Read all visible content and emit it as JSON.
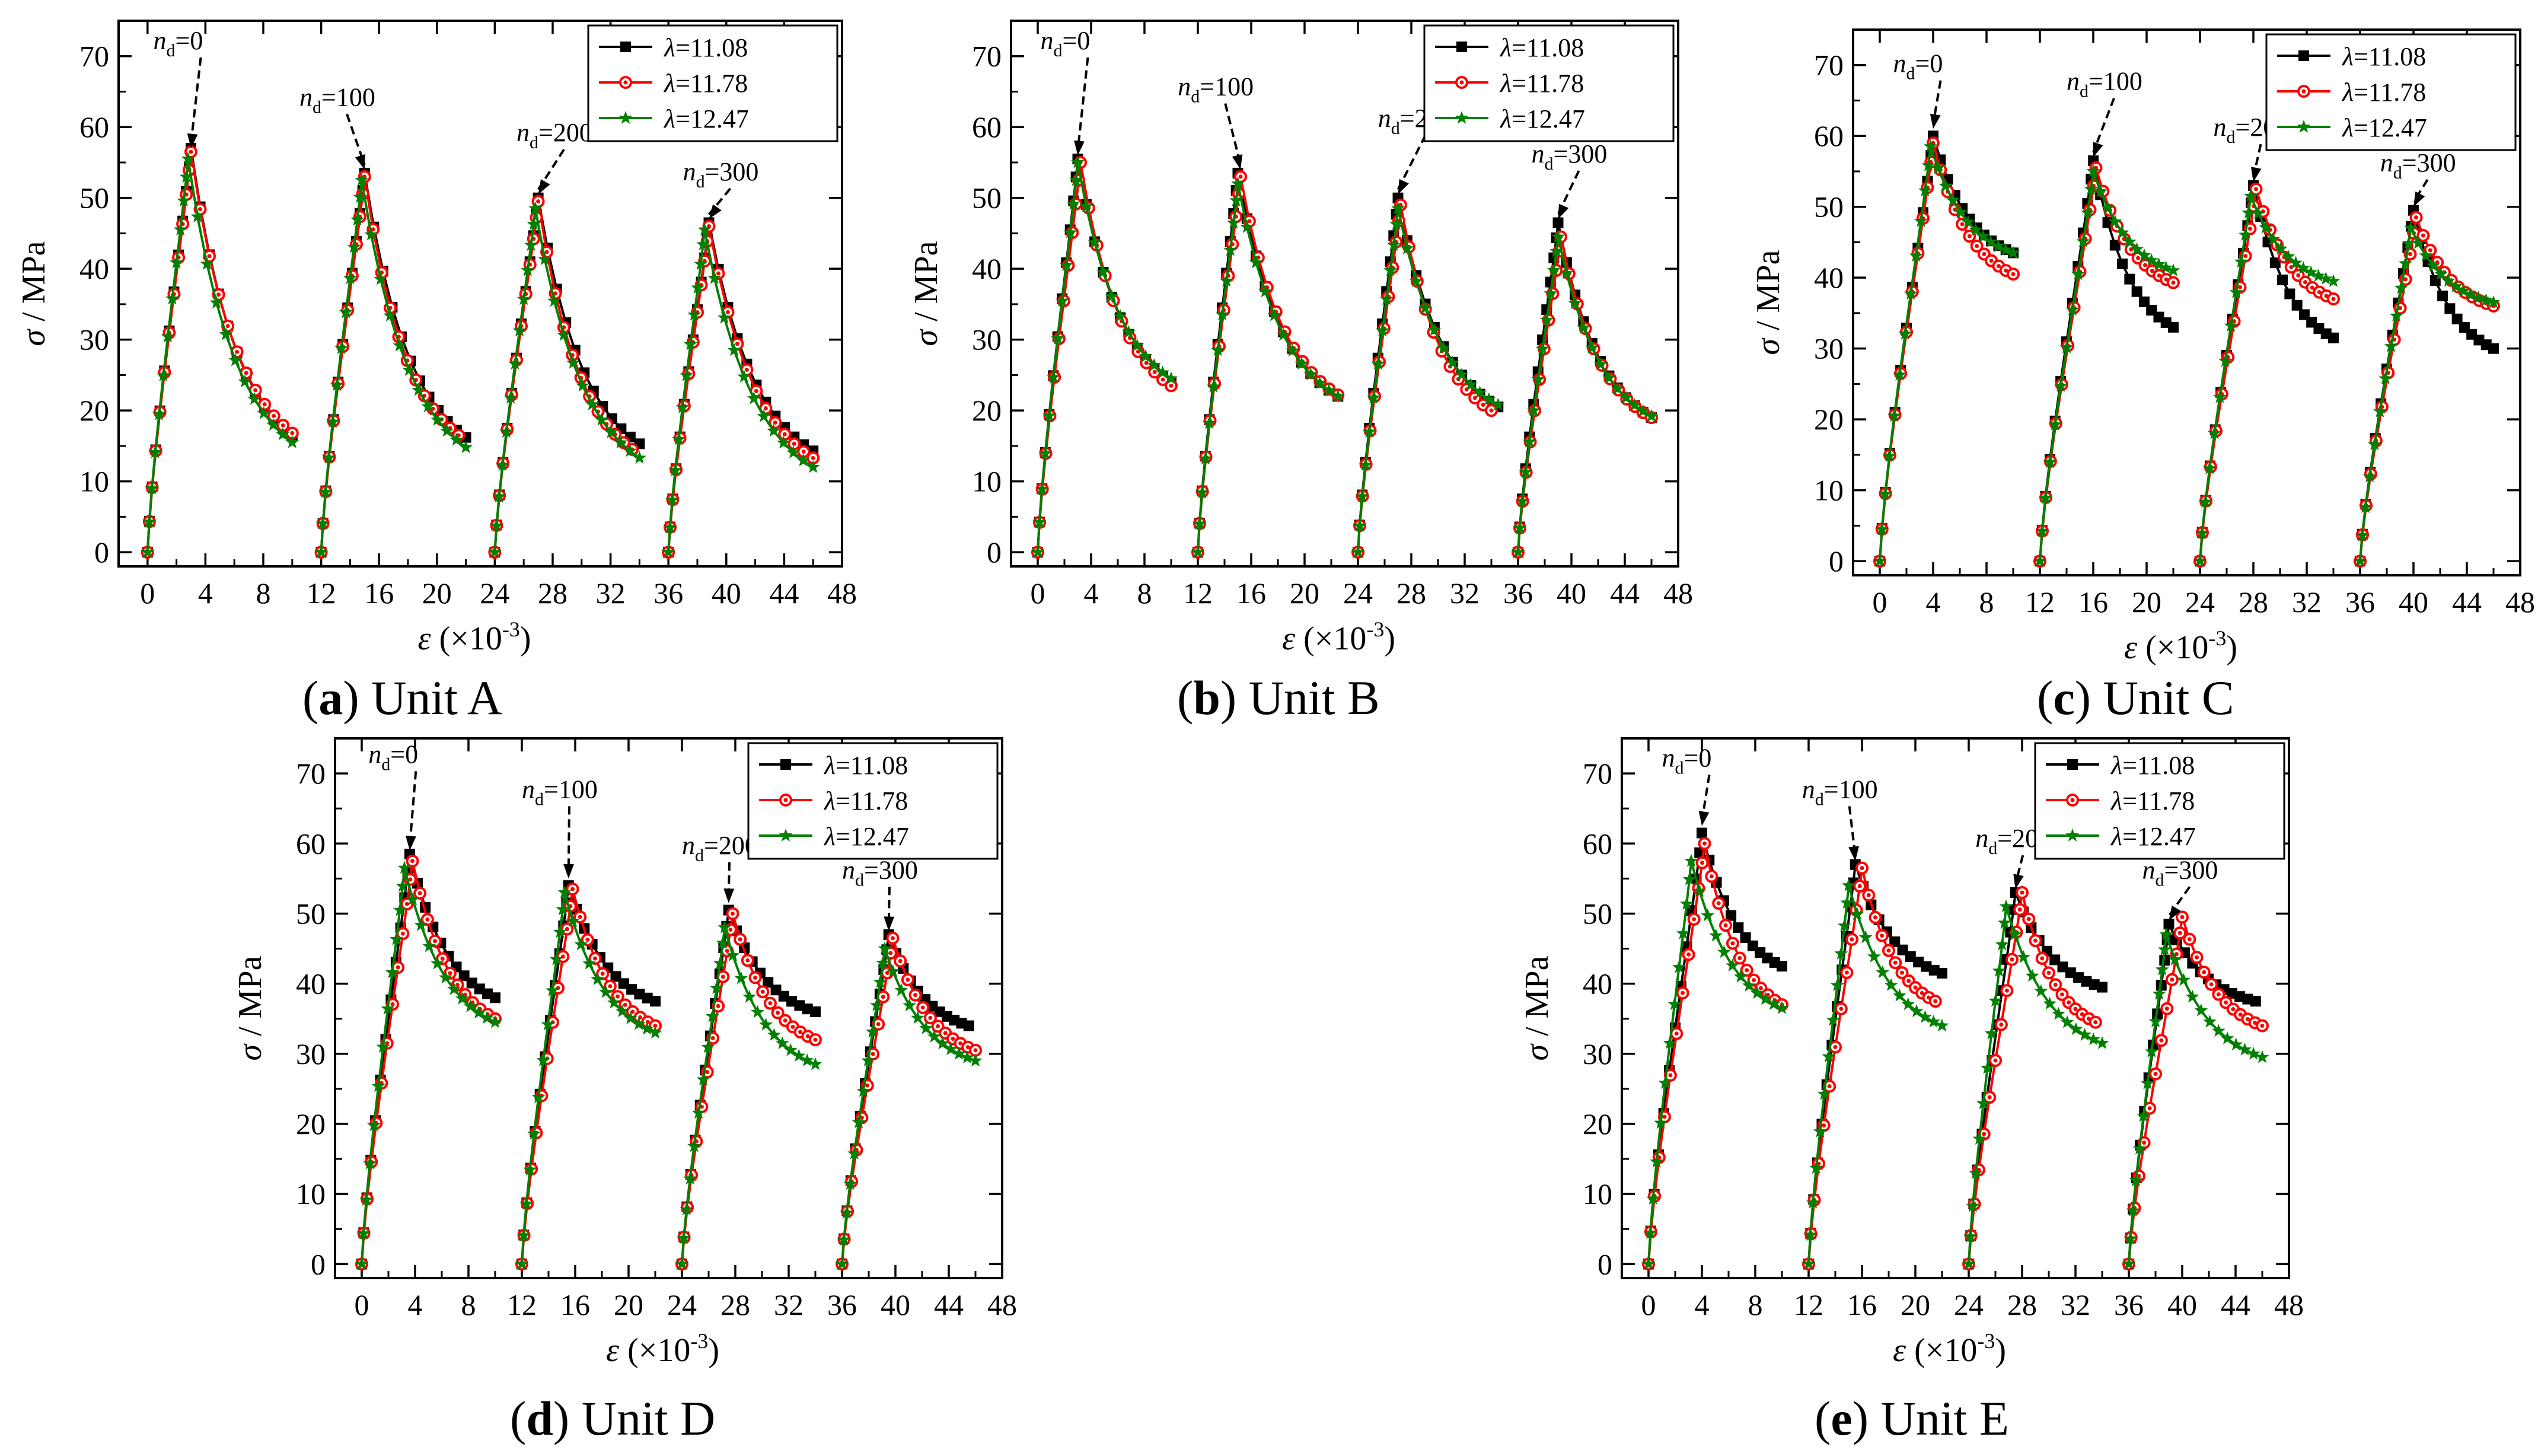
{
  "figure": {
    "legend_labels": [
      "λ=11.08",
      "λ=11.78",
      "λ=12.47"
    ],
    "series_colors": [
      "#000000",
      "#ff0000",
      "#008000"
    ],
    "series_markers": [
      "square",
      "circle",
      "star"
    ],
    "annotation_prefix": "n",
    "annotation_subscript": "d",
    "ylabel_symbol": "σ",
    "ylabel_unit": " / MPa",
    "xlabel_symbol": "ε",
    "xlabel_unit": " (×10",
    "xlabel_exp": "-3",
    "xlabel_close": ")"
  },
  "captions": [
    {
      "letter": "a",
      "text": "Unit A"
    },
    {
      "letter": "b",
      "text": "Unit B"
    },
    {
      "letter": "c",
      "text": "Unit C"
    },
    {
      "letter": "d",
      "text": "Unit D"
    },
    {
      "letter": "e",
      "text": "Unit E"
    }
  ],
  "chart_data": [
    {
      "id": "a",
      "type": "line",
      "title": "Unit A",
      "xlabel": "ε (×10-3)",
      "ylabel": "σ / MPa",
      "xlim": [
        -2,
        48
      ],
      "ylim": [
        -2,
        75
      ],
      "xticks": [
        0,
        4,
        8,
        12,
        16,
        20,
        24,
        28,
        32,
        36,
        40,
        44,
        48
      ],
      "yticks": [
        0,
        10,
        20,
        30,
        40,
        50,
        60,
        70
      ],
      "legend_position": "top-right",
      "annotations": [
        {
          "text": "nd=0",
          "label_x": 0.4,
          "label_y": 71,
          "arrow_to": [
            3.0,
            57
          ]
        },
        {
          "text": "nd=100",
          "label_x": 10.5,
          "label_y": 63,
          "arrow_to": [
            15.0,
            54
          ]
        },
        {
          "text": "nd=200",
          "label_x": 25.5,
          "label_y": 58,
          "arrow_to": [
            27.0,
            50.5
          ]
        },
        {
          "text": "nd=300",
          "label_x": 37.0,
          "label_y": 52.5,
          "arrow_to": [
            38.8,
            47
          ]
        }
      ],
      "series": [
        {
          "name": "λ=11.08",
          "peaks": [
            [
              3.0,
              57
            ],
            [
              15.0,
              53.5
            ],
            [
              27.0,
              50
            ],
            [
              38.8,
              46.5
            ]
          ],
          "ends": [
            [
              10.0,
              16.5
            ],
            [
              22.0,
              16.2
            ],
            [
              34.0,
              15.3
            ],
            [
              46.0,
              14.3
            ]
          ]
        },
        {
          "name": "λ=11.78",
          "peaks": [
            [
              3.0,
              56.5
            ],
            [
              15.0,
              53
            ],
            [
              27.0,
              49.5
            ],
            [
              38.8,
              46
            ]
          ],
          "ends": [
            [
              10.0,
              16.8
            ],
            [
              21.5,
              16.5
            ],
            [
              33.5,
              14.5
            ],
            [
              46.0,
              13.3
            ]
          ]
        },
        {
          "name": "λ=12.47",
          "peaks": [
            [
              2.8,
              55.5
            ],
            [
              14.8,
              52.5
            ],
            [
              26.8,
              48.5
            ],
            [
              38.5,
              45.5
            ]
          ],
          "ends": [
            [
              10.0,
              15.5
            ],
            [
              22.0,
              14.8
            ],
            [
              34.0,
              13.3
            ],
            [
              46.0,
              12.0
            ]
          ]
        }
      ]
    },
    {
      "id": "b",
      "type": "line",
      "title": "Unit B",
      "xlabel": "ε (×10-3)",
      "ylabel": "σ / MPa",
      "xlim": [
        -2,
        48
      ],
      "ylim": [
        -2,
        75
      ],
      "xticks": [
        0,
        4,
        8,
        12,
        16,
        20,
        24,
        28,
        32,
        36,
        40,
        44,
        48
      ],
      "yticks": [
        0,
        10,
        20,
        30,
        40,
        50,
        60,
        70
      ],
      "legend_position": "top-right",
      "annotations": [
        {
          "text": "nd=0",
          "label_x": 0.2,
          "label_y": 71,
          "arrow_to": [
            3.0,
            56
          ]
        },
        {
          "text": "nd=100",
          "label_x": 10.5,
          "label_y": 64.5,
          "arrow_to": [
            15.2,
            54
          ]
        },
        {
          "text": "nd=200",
          "label_x": 25.5,
          "label_y": 60,
          "arrow_to": [
            27.0,
            50.5
          ]
        },
        {
          "text": "nd=300",
          "label_x": 37.0,
          "label_y": 55,
          "arrow_to": [
            39.0,
            47
          ]
        }
      ],
      "series": [
        {
          "name": "λ=11.08",
          "peaks": [
            [
              3.0,
              55.5
            ],
            [
              15.0,
              53.5
            ],
            [
              27.0,
              50
            ],
            [
              39.0,
              46.5
            ]
          ],
          "ends": [
            [
              10.0,
              24.0
            ],
            [
              22.5,
              22.0
            ],
            [
              34.5,
              20.5
            ],
            [
              46.0,
              19.0
            ]
          ]
        },
        {
          "name": "λ=11.78",
          "peaks": [
            [
              3.2,
              55
            ],
            [
              15.2,
              53
            ],
            [
              27.2,
              49
            ],
            [
              39.2,
              44.5
            ]
          ],
          "ends": [
            [
              10.0,
              23.5
            ],
            [
              22.5,
              22.2
            ],
            [
              34.0,
              20.0
            ],
            [
              46.0,
              19.0
            ]
          ]
        },
        {
          "name": "λ=12.47",
          "peaks": [
            [
              3.0,
              55
            ],
            [
              15.0,
              52
            ],
            [
              27.0,
              48.5
            ],
            [
              39.0,
              44.5
            ]
          ],
          "ends": [
            [
              10.0,
              24.5
            ],
            [
              22.5,
              22.0
            ],
            [
              34.5,
              20.8
            ],
            [
              46.0,
              19.2
            ]
          ]
        }
      ]
    },
    {
      "id": "c",
      "type": "line",
      "title": "Unit C",
      "xlabel": "ε (×10-3)",
      "ylabel": "σ / MPa",
      "xlim": [
        -2,
        48
      ],
      "ylim": [
        -2,
        75
      ],
      "xticks": [
        0,
        4,
        8,
        12,
        16,
        20,
        24,
        28,
        32,
        36,
        40,
        44,
        48
      ],
      "yticks": [
        0,
        10,
        20,
        30,
        40,
        50,
        60,
        70
      ],
      "legend_position": "top-right",
      "annotations": [
        {
          "text": "nd=0",
          "label_x": 1.0,
          "label_y": 69,
          "arrow_to": [
            4.0,
            61
          ]
        },
        {
          "text": "nd=100",
          "label_x": 14.0,
          "label_y": 66.5,
          "arrow_to": [
            16.0,
            57
          ]
        },
        {
          "text": "nd=200",
          "label_x": 25.0,
          "label_y": 60,
          "arrow_to": [
            28.0,
            53.5
          ]
        },
        {
          "text": "nd=300",
          "label_x": 37.5,
          "label_y": 55,
          "arrow_to": [
            40.0,
            50
          ]
        }
      ],
      "series": [
        {
          "name": "λ=11.08",
          "peaks": [
            [
              4.0,
              60
            ],
            [
              16.0,
              56.5
            ],
            [
              28.0,
              53
            ],
            [
              40.0,
              49.5
            ]
          ],
          "ends": [
            [
              10.0,
              43.5
            ],
            [
              22.0,
              33.0
            ],
            [
              34.0,
              31.5
            ],
            [
              46.0,
              30.0
            ]
          ]
        },
        {
          "name": "λ=11.78",
          "peaks": [
            [
              4.0,
              59
            ],
            [
              16.2,
              55.5
            ],
            [
              28.2,
              52.5
            ],
            [
              40.2,
              48.5
            ]
          ],
          "ends": [
            [
              10.0,
              40.5
            ],
            [
              22.0,
              39.3
            ],
            [
              34.0,
              37.0
            ],
            [
              46.0,
              36.0
            ]
          ]
        },
        {
          "name": "λ=12.47",
          "peaks": [
            [
              3.8,
              58.5
            ],
            [
              16.0,
              55
            ],
            [
              27.8,
              51.5
            ],
            [
              39.8,
              47
            ]
          ],
          "ends": [
            [
              10.0,
              43.5
            ],
            [
              22.0,
              41.0
            ],
            [
              34.0,
              39.5
            ],
            [
              46.0,
              36.5
            ]
          ]
        }
      ]
    },
    {
      "id": "d",
      "type": "line",
      "title": "Unit D",
      "xlabel": "ε (×10-3)",
      "ylabel": "σ / MPa",
      "xlim": [
        -2,
        48
      ],
      "ylim": [
        -2,
        75
      ],
      "xticks": [
        0,
        4,
        8,
        12,
        16,
        20,
        24,
        28,
        32,
        36,
        40,
        44,
        48
      ],
      "yticks": [
        0,
        10,
        20,
        30,
        40,
        50,
        60,
        70
      ],
      "legend_position": "top-right",
      "annotations": [
        {
          "text": "nd=0",
          "label_x": 0.5,
          "label_y": 71.5,
          "arrow_to": [
            3.6,
            59
          ]
        },
        {
          "text": "nd=100",
          "label_x": 12.0,
          "label_y": 66.5,
          "arrow_to": [
            15.5,
            55
          ]
        },
        {
          "text": "nd=200",
          "label_x": 24.0,
          "label_y": 58.5,
          "arrow_to": [
            27.5,
            51.5
          ]
        },
        {
          "text": "nd=300",
          "label_x": 36.0,
          "label_y": 55,
          "arrow_to": [
            39.5,
            47.5
          ]
        }
      ],
      "series": [
        {
          "name": "λ=11.08",
          "peaks": [
            [
              3.6,
              58.5
            ],
            [
              15.5,
              54
            ],
            [
              27.5,
              50.5
            ],
            [
              39.5,
              47
            ]
          ],
          "ends": [
            [
              10.0,
              38.0
            ],
            [
              22.0,
              37.5
            ],
            [
              34.0,
              36.0
            ],
            [
              45.5,
              34.0
            ]
          ]
        },
        {
          "name": "λ=11.78",
          "peaks": [
            [
              3.8,
              57.5
            ],
            [
              15.8,
              53.5
            ],
            [
              27.8,
              50
            ],
            [
              39.8,
              46.5
            ]
          ],
          "ends": [
            [
              10.0,
              35.0
            ],
            [
              22.0,
              34.0
            ],
            [
              34.0,
              32.0
            ],
            [
              46.0,
              30.5
            ]
          ]
        },
        {
          "name": "λ=12.47",
          "peaks": [
            [
              3.2,
              56.5
            ],
            [
              15.2,
              53
            ],
            [
              27.2,
              48
            ],
            [
              39.2,
              45
            ]
          ],
          "ends": [
            [
              10.0,
              34.5
            ],
            [
              22.0,
              33.0
            ],
            [
              34.0,
              28.5
            ],
            [
              46.0,
              29.0
            ]
          ]
        }
      ]
    },
    {
      "id": "e",
      "type": "line",
      "title": "Unit E",
      "xlabel": "ε (×10-3)",
      "ylabel": "σ / MPa",
      "xlim": [
        -2,
        48
      ],
      "ylim": [
        -2,
        75
      ],
      "xticks": [
        0,
        4,
        8,
        12,
        16,
        20,
        24,
        28,
        32,
        36,
        40,
        44,
        48
      ],
      "yticks": [
        0,
        10,
        20,
        30,
        40,
        50,
        60,
        70
      ],
      "legend_position": "top-right",
      "annotations": [
        {
          "text": "nd=0",
          "label_x": 1.0,
          "label_y": 71,
          "arrow_to": [
            4.0,
            62.5
          ]
        },
        {
          "text": "nd=100",
          "label_x": 11.5,
          "label_y": 66.5,
          "arrow_to": [
            15.5,
            57.5
          ]
        },
        {
          "text": "nd=200",
          "label_x": 24.5,
          "label_y": 59.5,
          "arrow_to": [
            27.5,
            53.5
          ]
        },
        {
          "text": "nd=300",
          "label_x": 37.0,
          "label_y": 55,
          "arrow_to": [
            39.0,
            49
          ]
        }
      ],
      "series": [
        {
          "name": "λ=11.08",
          "peaks": [
            [
              4.0,
              61.5
            ],
            [
              15.5,
              57
            ],
            [
              27.5,
              53
            ],
            [
              39.0,
              48.5
            ]
          ],
          "ends": [
            [
              10.0,
              42.5
            ],
            [
              22.0,
              41.5
            ],
            [
              34.0,
              39.5
            ],
            [
              45.5,
              37.5
            ]
          ]
        },
        {
          "name": "λ=11.78",
          "peaks": [
            [
              4.2,
              60
            ],
            [
              16.0,
              56.5
            ],
            [
              28.0,
              53
            ],
            [
              40.0,
              49.5
            ]
          ],
          "ends": [
            [
              10.0,
              37.0
            ],
            [
              21.5,
              37.5
            ],
            [
              33.5,
              34.5
            ],
            [
              46.0,
              34.0
            ]
          ]
        },
        {
          "name": "λ=12.47",
          "peaks": [
            [
              3.2,
              57.5
            ],
            [
              15.0,
              54
            ],
            [
              26.8,
              51
            ],
            [
              38.8,
              47
            ]
          ],
          "ends": [
            [
              10.0,
              36.5
            ],
            [
              22.0,
              34.0
            ],
            [
              34.0,
              31.5
            ],
            [
              46.0,
              29.5
            ]
          ]
        }
      ]
    }
  ]
}
